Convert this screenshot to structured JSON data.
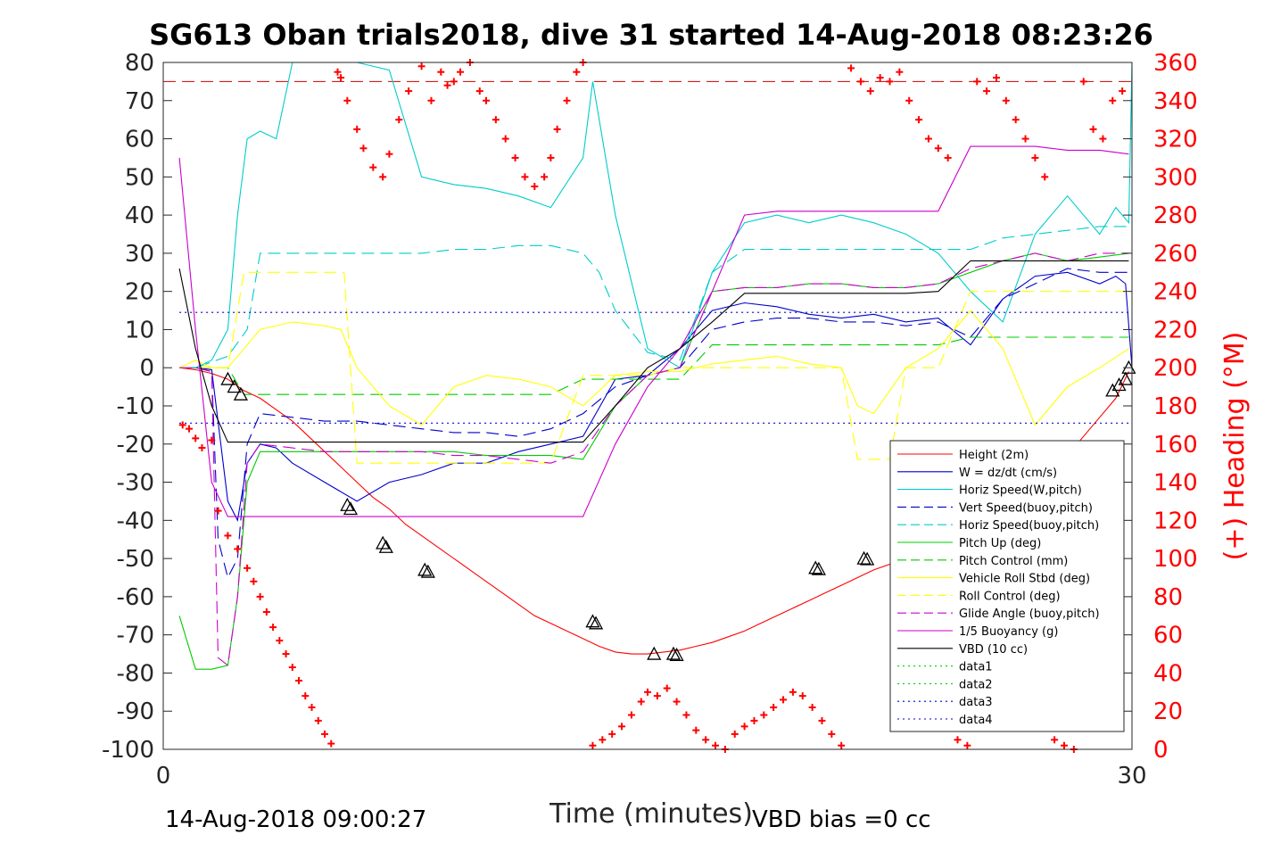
{
  "chart_data": {
    "type": "line",
    "title": "SG613 Oban trials2018, dive 31 started 14-Aug-2018 08:23:26",
    "xlabel": "Time (minutes)",
    "ylabel_right": "(+) Heading (°M)",
    "xlim": [
      0,
      30
    ],
    "ylim": [
      -100,
      80
    ],
    "ylim_right": [
      0,
      360
    ],
    "x_ticks": [
      "0",
      "30"
    ],
    "y_ticks": [
      "80",
      "70",
      "60",
      "50",
      "40",
      "30",
      "20",
      "10",
      "0",
      "-10",
      "-20",
      "-30",
      "-40",
      "-50",
      "-60",
      "-70",
      "-80",
      "-90",
      "-100"
    ],
    "y_ticks_right": [
      "360",
      "340",
      "320",
      "300",
      "280",
      "260",
      "240",
      "220",
      "200",
      "180",
      "160",
      "140",
      "120",
      "100",
      "80",
      "60",
      "40",
      "20",
      "0"
    ],
    "footer_left": "14-Aug-2018 09:00:27",
    "footer_right": "VBD bias =0 cc",
    "legend_position": "lower-right",
    "series": [
      {
        "name": "Height (2m)",
        "color": "#ff0000",
        "style": "solid",
        "x": [
          0.5,
          1.0,
          1.5,
          2.0,
          2.5,
          3.0,
          3.5,
          4.0,
          4.5,
          5.0,
          5.5,
          6.0,
          6.5,
          7.0,
          7.5,
          8.0,
          8.5,
          9.0,
          9.5,
          10.0,
          10.5,
          11.0,
          11.5,
          12.0,
          12.5,
          13.0,
          13.5,
          14.0,
          14.5,
          15.0,
          15.5,
          16.0,
          16.5,
          17.0,
          17.5,
          18.0,
          18.5,
          19.0,
          19.5,
          20.0,
          20.5,
          21.0,
          21.5,
          22.0,
          22.5,
          23.0,
          23.5,
          24.0,
          24.5,
          25.0,
          25.5,
          26.0,
          26.5,
          27.0,
          27.5,
          28.0,
          28.5,
          29.0,
          29.5,
          29.9
        ],
        "y": [
          0,
          -0.5,
          -1.5,
          -3,
          -6,
          -8,
          -11,
          -14,
          -18,
          -22,
          -26,
          -30,
          -34,
          -37,
          -41,
          -44,
          -47,
          -50,
          -53,
          -56,
          -59,
          -62,
          -65,
          -67,
          -69,
          -71,
          -73,
          -74.5,
          -75,
          -75,
          -74.5,
          -74,
          -73,
          -72,
          -70.5,
          -69,
          -67,
          -65,
          -63,
          -61,
          -59,
          -57,
          -55,
          -53,
          -51.5,
          -50,
          -49,
          -47,
          -45,
          -42,
          -40,
          -37,
          -34,
          -31,
          -27,
          -23,
          -18,
          -13,
          -8,
          -1
        ]
      },
      {
        "name": "W = dz/dt (cm/s)",
        "color": "#0000cc",
        "style": "solid",
        "x": [
          0.5,
          1.0,
          1.5,
          2.0,
          2.3,
          2.6,
          3.0,
          3.5,
          4.0,
          5,
          6,
          7,
          8,
          9,
          10,
          11,
          12,
          13,
          14,
          15,
          16,
          17,
          18,
          19,
          20,
          21,
          22,
          23,
          24,
          25,
          26,
          27,
          28,
          29,
          29.5,
          29.8,
          30
        ],
        "y": [
          0,
          0,
          -0.5,
          -35,
          -40,
          -25,
          -20,
          -21,
          -25,
          -30,
          -35,
          -30,
          -28,
          -25,
          -25,
          -22,
          -20,
          -18,
          -3,
          -2,
          5,
          15,
          17,
          16,
          14,
          13,
          14,
          12,
          13,
          6,
          18,
          24,
          25,
          22,
          24,
          22,
          0
        ]
      },
      {
        "name": "Horiz Speed(W,pitch)",
        "color": "#00cccc",
        "style": "solid",
        "x": [
          0.5,
          1.0,
          1.5,
          2.0,
          2.3,
          2.6,
          3.0,
          3.5,
          4.0,
          5,
          6,
          7,
          8,
          9,
          10,
          11,
          12,
          13,
          13.3,
          14,
          15,
          16,
          17,
          18,
          19,
          20,
          21,
          22,
          23,
          24,
          25,
          26,
          27,
          28,
          29,
          29.5,
          29.9,
          30
        ],
        "y": [
          0,
          0,
          2,
          10,
          40,
          60,
          62,
          60,
          80,
          80,
          80,
          78,
          50,
          48,
          47,
          45,
          42,
          55,
          75,
          40,
          5,
          0,
          25,
          38,
          40,
          38,
          40,
          38,
          35,
          30,
          20,
          12,
          35,
          45,
          35,
          42,
          38,
          80
        ]
      },
      {
        "name": "Vert Speed(buoy,pitch)",
        "color": "#0000cc",
        "style": "dashed",
        "x": [
          0.5,
          1.0,
          1.5,
          1.7,
          2.0,
          2.3,
          2.6,
          3.0,
          4,
          5,
          6,
          7,
          8,
          9,
          10,
          11,
          12,
          13,
          14,
          15,
          16,
          17,
          18,
          19,
          20,
          21,
          22,
          23,
          24,
          25,
          26,
          27,
          28,
          29,
          29.9
        ],
        "y": [
          0,
          0,
          -1,
          -45,
          -55,
          -50,
          -20,
          -12,
          -13,
          -14,
          -14,
          -15,
          -16,
          -17,
          -17,
          -18,
          -16,
          -12,
          -5,
          -2,
          0,
          10,
          12,
          13,
          13,
          12,
          12,
          11,
          12,
          8,
          18,
          22,
          26,
          25,
          25
        ]
      },
      {
        "name": "Horiz Speed(buoy,pitch)",
        "color": "#00cccc",
        "style": "dashed",
        "x": [
          0.5,
          1.0,
          2.0,
          2.6,
          3.0,
          4,
          5,
          6,
          7,
          8,
          9,
          10,
          11,
          12,
          13,
          13.5,
          14,
          15,
          16,
          17,
          18,
          19,
          20,
          21,
          22,
          23,
          24,
          25,
          26,
          27,
          28,
          29,
          29.9
        ],
        "y": [
          0,
          0,
          3,
          10,
          30,
          30,
          30,
          30,
          30,
          30,
          31,
          31,
          32,
          32,
          30,
          25,
          15,
          4,
          2,
          25,
          31,
          31,
          31,
          31,
          31,
          31,
          31,
          31,
          34,
          35,
          36,
          37,
          37
        ]
      },
      {
        "name": "Pitch Up (deg)",
        "color": "#00cc00",
        "style": "solid",
        "x": [
          0.5,
          1.0,
          1.5,
          2.0,
          2.3,
          2.6,
          3.0,
          4,
          5,
          6,
          7,
          8,
          9,
          10,
          11,
          12,
          13,
          14,
          15,
          16,
          17,
          18,
          19,
          20,
          21,
          22,
          23,
          24,
          25,
          26,
          27,
          28,
          29,
          29.9
        ],
        "y": [
          -65,
          -79,
          -79,
          -78,
          -60,
          -30,
          -22,
          -22,
          -22,
          -22,
          -22,
          -22,
          -22,
          -23,
          -23,
          -23,
          -24,
          -10,
          -2,
          0,
          20,
          21,
          21,
          22,
          22,
          21,
          21,
          22,
          25,
          28,
          30,
          28,
          29,
          30
        ]
      },
      {
        "name": "Pitch Control (mm)",
        "color": "#00cc00",
        "style": "dashed",
        "x": [
          0.5,
          2.0,
          2.5,
          3,
          5,
          7,
          9,
          10,
          11,
          12,
          13,
          14,
          15,
          16,
          17,
          18,
          19,
          20,
          21,
          22,
          23,
          24,
          25,
          26,
          27,
          28,
          29,
          29.9
        ],
        "y": [
          0,
          0,
          -7,
          -7,
          -7,
          -7,
          -7,
          -7,
          -7,
          -7,
          -3,
          -3,
          -3,
          -3,
          6,
          6,
          6,
          6,
          6,
          6,
          6,
          6,
          8,
          8,
          8,
          8,
          8,
          8
        ]
      },
      {
        "name": "Vehicle Roll Stbd (deg)",
        "color": "#ffff00",
        "style": "solid",
        "x": [
          0.5,
          1.0,
          1.5,
          2.0,
          2.5,
          3,
          4,
          5,
          5.5,
          6,
          7,
          8,
          9,
          10,
          11,
          12,
          13,
          14,
          15,
          16,
          17,
          18,
          19,
          20,
          21,
          21.5,
          22,
          23,
          24,
          25,
          26,
          27,
          28,
          29,
          29.9
        ],
        "y": [
          0,
          2,
          0,
          0,
          5,
          10,
          12,
          11,
          10,
          0,
          -10,
          -15,
          -5,
          -2,
          -3,
          -5,
          -10,
          -2,
          -1,
          -1,
          1,
          2,
          3,
          1,
          0,
          -10,
          -12,
          0,
          5,
          15,
          5,
          -15,
          -5,
          0,
          5
        ]
      },
      {
        "name": "Roll Control (deg)",
        "color": "#ffff00",
        "style": "dashed",
        "x": [
          0.5,
          1.5,
          2.0,
          2.5,
          3,
          4,
          5,
          5.6,
          6,
          7,
          8,
          9,
          10,
          11,
          12,
          13,
          14,
          15,
          16,
          17,
          18,
          19,
          20,
          21,
          21.5,
          22,
          22.5,
          23,
          24,
          25,
          26,
          27,
          28,
          29,
          29.9
        ],
        "y": [
          0,
          0,
          0,
          25,
          25,
          25,
          25,
          25,
          -25,
          -25,
          -25,
          -25,
          -25,
          -25,
          -25,
          -2,
          -2,
          -2,
          0,
          0,
          0,
          0,
          0,
          0,
          -24,
          -24,
          -24,
          0,
          0,
          20,
          20,
          20,
          20,
          20,
          20
        ]
      },
      {
        "name": "Glide Angle (buoy,pitch)",
        "color": "#cc00cc",
        "style": "dashed",
        "x": [
          0.5,
          1.0,
          1.5,
          1.7,
          2.0,
          2.3,
          2.6,
          3.0,
          4,
          5,
          6,
          7,
          8,
          9,
          10,
          11,
          12,
          13,
          14,
          15,
          16,
          17,
          18,
          19,
          20,
          21,
          22,
          23,
          24,
          25,
          26,
          27,
          28,
          29,
          29.9
        ],
        "y": [
          0,
          0,
          -1,
          -76,
          -78,
          -60,
          -25,
          -20,
          -21,
          -22,
          -22,
          -22,
          -22,
          -23,
          -23,
          -24,
          -25,
          -22,
          -10,
          -2,
          0,
          20,
          21,
          21,
          22,
          22,
          21,
          21,
          22,
          26,
          28,
          30,
          28,
          30,
          30
        ]
      },
      {
        "name": "1/5 Buoyancy (g)",
        "color": "#cc00cc",
        "style": "solid",
        "x": [
          0.5,
          1.0,
          1.5,
          2.0,
          2.5,
          3,
          5,
          7,
          9,
          11,
          13,
          14,
          15,
          16,
          17,
          18,
          19,
          20,
          21,
          22,
          23,
          24,
          25,
          26,
          27,
          28,
          29,
          29.9
        ],
        "y": [
          55,
          10,
          -30,
          -39,
          -39,
          -39,
          -39,
          -39,
          -39,
          -39,
          -39,
          -20,
          -5,
          5,
          20,
          40,
          41,
          41,
          41,
          41,
          41,
          41,
          58,
          58,
          58,
          57,
          57,
          56
        ]
      },
      {
        "name": "VBD (10 cc)",
        "color": "#000000",
        "style": "solid",
        "x": [
          0.5,
          1.0,
          1.5,
          2.0,
          3,
          5,
          7,
          9,
          11,
          13,
          14,
          15,
          16,
          17,
          18,
          19,
          20,
          21,
          22,
          23,
          24,
          25,
          26,
          27,
          28,
          29,
          29.9
        ],
        "y": [
          26,
          5,
          -10,
          -19.5,
          -19.5,
          -19.5,
          -19.5,
          -19.5,
          -19.5,
          -19.5,
          -10,
          0,
          5,
          12,
          19.5,
          19.5,
          19.5,
          19.5,
          19.5,
          19.5,
          20,
          28,
          28,
          28,
          28,
          28,
          28
        ]
      },
      {
        "name": "data1",
        "color": "#00cc00",
        "style": "dotted",
        "x": [],
        "y": []
      },
      {
        "name": "data2",
        "color": "#00cc00",
        "style": "dotted",
        "x": [],
        "y": []
      },
      {
        "name": "data3",
        "color": "#0000cc",
        "style": "dotted",
        "x": [
          0.5,
          30
        ],
        "y": [
          14.5,
          14.5
        ]
      },
      {
        "name": "data4",
        "color": "#0000cc",
        "style": "dotted",
        "x": [
          0.5,
          30
        ],
        "y": [
          -14.5,
          -14.5
        ]
      }
    ],
    "reference_lines": [
      {
        "axis": "right",
        "value": 350,
        "color": "#cc0000",
        "style": "dashed"
      }
    ],
    "heading_points": {
      "axis": "right",
      "color": "#ff0000",
      "marker": "+",
      "x": [
        0.6,
        0.8,
        1.0,
        1.2,
        1.5,
        1.7,
        2.0,
        2.3,
        2.6,
        2.8,
        3.0,
        3.2,
        3.4,
        3.6,
        3.8,
        4.0,
        4.2,
        4.4,
        4.6,
        4.8,
        5.0,
        5.2,
        5.4,
        5.5,
        5.7,
        6.0,
        6.2,
        6.5,
        6.8,
        7.0,
        7.3,
        7.6,
        8.0,
        8.3,
        8.6,
        8.8,
        9.0,
        9.2,
        9.5,
        9.8,
        10.0,
        10.3,
        10.6,
        10.9,
        11.2,
        11.5,
        11.8,
        12.0,
        12.2,
        12.5,
        12.8,
        13.0,
        13.3,
        13.6,
        13.9,
        14.2,
        14.5,
        14.8,
        15.0,
        15.3,
        15.6,
        15.9,
        16.2,
        16.5,
        16.8,
        17.1,
        17.4,
        17.7,
        18.0,
        18.3,
        18.6,
        18.9,
        19.2,
        19.5,
        19.8,
        20.1,
        20.4,
        20.7,
        21.0,
        21.3,
        21.6,
        21.9,
        22.2,
        22.5,
        22.8,
        23.1,
        23.4,
        23.7,
        24.0,
        24.3,
        24.6,
        24.9,
        25.2,
        25.5,
        25.8,
        26.1,
        26.4,
        26.7,
        27.0,
        27.3,
        27.6,
        27.9,
        28.2,
        28.5,
        28.8,
        29.1,
        29.4,
        29.7
      ],
      "y": [
        170,
        168,
        163,
        158,
        162,
        125,
        112,
        105,
        95,
        88,
        80,
        72,
        64,
        57,
        50,
        43,
        36,
        28,
        22,
        15,
        8,
        3,
        355,
        352,
        340,
        325,
        315,
        305,
        300,
        312,
        330,
        345,
        358,
        340,
        355,
        348,
        350,
        355,
        360,
        345,
        340,
        330,
        320,
        310,
        300,
        295,
        300,
        310,
        325,
        340,
        355,
        360,
        2,
        5,
        8,
        12,
        18,
        25,
        30,
        28,
        32,
        25,
        18,
        10,
        5,
        2,
        0,
        8,
        12,
        15,
        18,
        22,
        26,
        30,
        28,
        22,
        15,
        8,
        2,
        357,
        350,
        345,
        352,
        350,
        355,
        340,
        330,
        320,
        315,
        310,
        5,
        2,
        350,
        345,
        352,
        340,
        330,
        320,
        310,
        300,
        5,
        2,
        0,
        350,
        325,
        320,
        340,
        345
      ]
    },
    "triangle_markers": {
      "axis": "left",
      "color": "#000000",
      "x": [
        2.0,
        2.2,
        2.4,
        5.7,
        5.8,
        6.8,
        6.9,
        8.1,
        8.2,
        13.3,
        13.4,
        15.2,
        15.8,
        15.9,
        20.2,
        20.3,
        21.7,
        21.8,
        29.4,
        29.6,
        29.8,
        29.9
      ],
      "y": [
        -3,
        -5,
        -7,
        -36,
        -37,
        -46,
        -47,
        -53,
        -53.5,
        -66.5,
        -67,
        -75,
        -75,
        -75.3,
        -52.5,
        -52.8,
        -50,
        -50.2,
        -6,
        -4.5,
        -3,
        0
      ]
    }
  }
}
